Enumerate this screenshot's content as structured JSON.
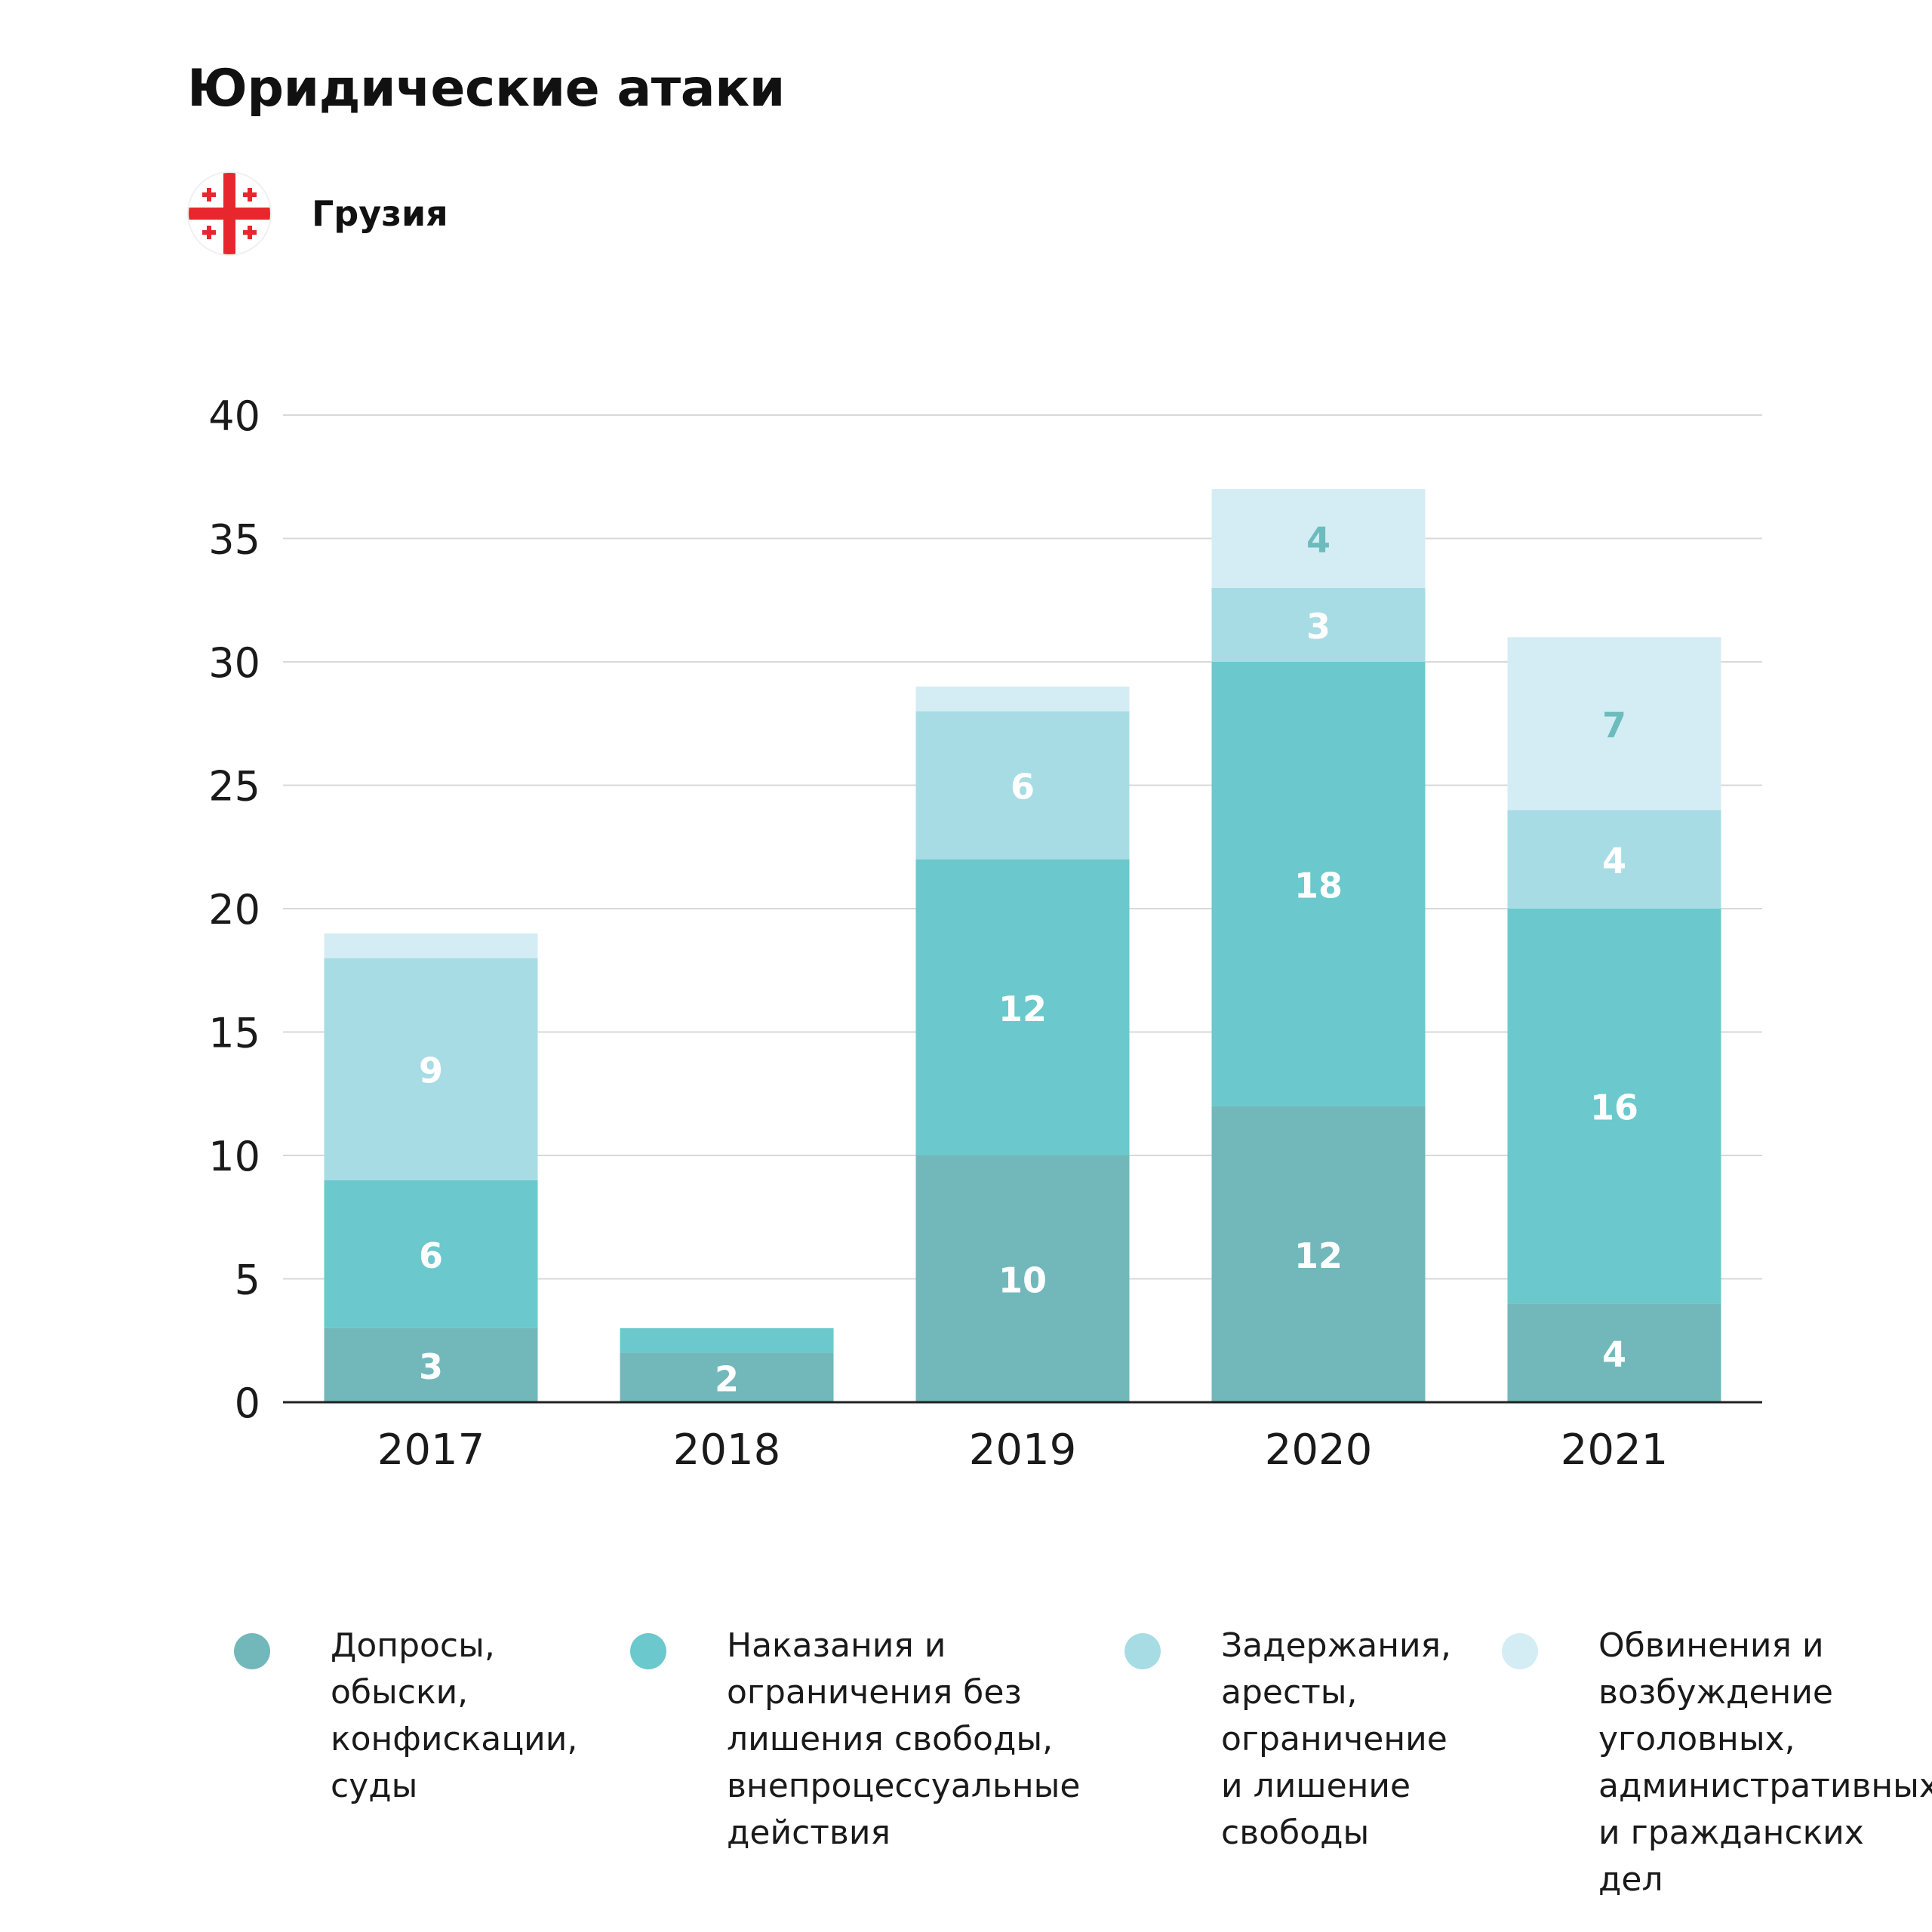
{
  "title": "Юридические атаки",
  "country": {
    "name": "Грузия",
    "flag_icon": "georgia-flag-icon"
  },
  "chart_data": {
    "type": "bar",
    "stacked": true,
    "title": "Юридические атаки",
    "categories": [
      "2017",
      "2018",
      "2019",
      "2020",
      "2021"
    ],
    "ylim": [
      0,
      40
    ],
    "yticks": [
      "0",
      "5",
      "10",
      "15",
      "20",
      "25",
      "30",
      "35",
      "40"
    ],
    "grid": true,
    "legend_position": "bottom",
    "series": [
      {
        "name": "Допросы, обыски, конфискации, суды",
        "color": "#72b8bb",
        "values": [
          3,
          2,
          10,
          12,
          4
        ],
        "labels": [
          "3",
          "2",
          "10",
          "12",
          "4"
        ],
        "label_color": "#ffffff"
      },
      {
        "name": "Наказания и ограничения без лишения свободы, внепроцессуальные действия",
        "color": "#6bc8cc",
        "values": [
          6,
          1,
          12,
          18,
          16
        ],
        "labels": [
          "6",
          "",
          "12",
          "18",
          "16"
        ],
        "label_color": "#ffffff"
      },
      {
        "name": "Задержания, аресты, ограничение и лишение свободы",
        "color": "#a8dce5",
        "values": [
          9,
          0,
          6,
          3,
          4
        ],
        "labels": [
          "9",
          "",
          "6",
          "3",
          "4"
        ],
        "label_color": "#ffffff"
      },
      {
        "name": "Обвинения и возбуждение уголовных, административных и гражданских дел",
        "color": "#d4edf4",
        "values": [
          1,
          0,
          1,
          4,
          7
        ],
        "labels": [
          "",
          "",
          "",
          "4",
          "7"
        ],
        "label_color": "#6cbcbe"
      }
    ]
  },
  "legend": [
    {
      "lines": [
        "Допросы,",
        "обыски,",
        "конфискации,",
        "суды"
      ],
      "color": "#72b8bb"
    },
    {
      "lines": [
        "Наказания и",
        "ограничения без",
        "лишения свободы,",
        "внепроцессуальные",
        "действия"
      ],
      "color": "#6bc8cc"
    },
    {
      "lines": [
        "Задержания,",
        "аресты,",
        "ограничение",
        "и лишение",
        "свободы"
      ],
      "color": "#a8dce5"
    },
    {
      "lines": [
        "Обвинения и",
        "возбуждение",
        "уголовных,",
        "административных",
        "и гражданских дел"
      ],
      "color": "#d4edf4"
    }
  ]
}
